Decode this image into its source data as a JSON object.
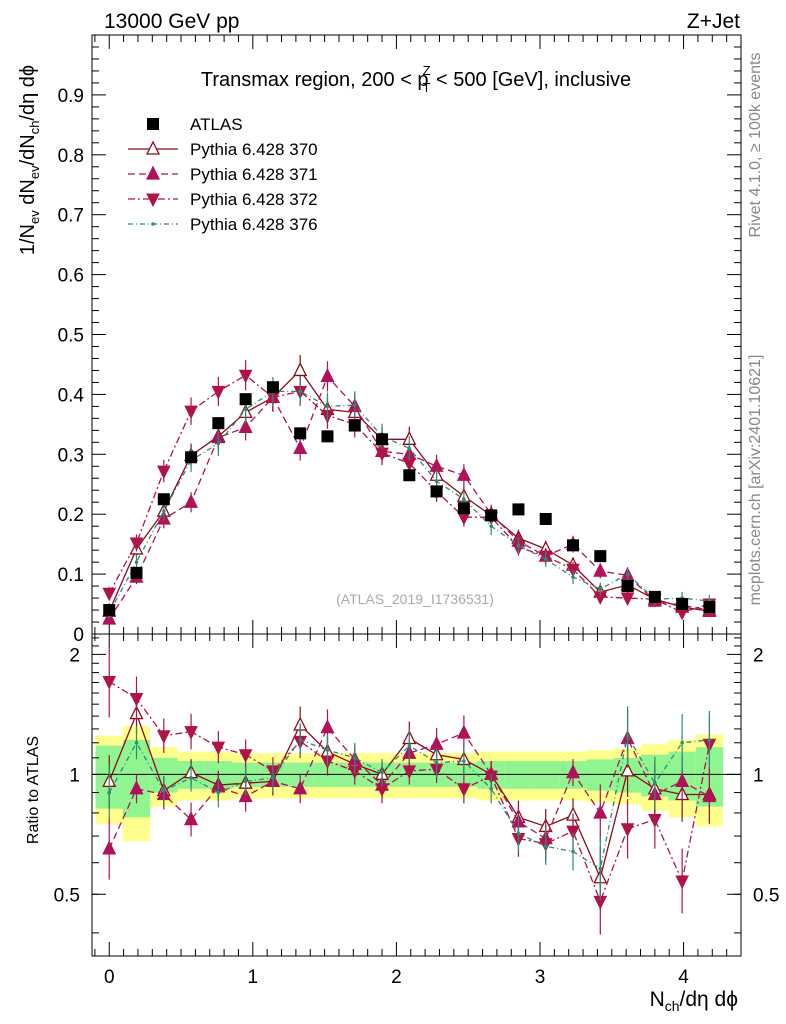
{
  "header": {
    "left": "13000 GeV pp",
    "right": "Z+Jet",
    "side_top": "Rivet 4.1.0, ≥ 100k events",
    "side_bottom": "mcplots.cern.ch [arXiv:2401.10621]"
  },
  "chart_data": {
    "type": "scatter",
    "title": "Transmax region, 200 < pT^Z < 500 [GeV], inclusive",
    "title_parts": {
      "pre": "Transmax region, 200 < p",
      "sup": "Z",
      "sub": "T",
      "post": " < 500 [GeV], inclusive"
    },
    "watermark": "(ATLAS_2019_I1736531)",
    "xlabel": "N_ch/dη dϕ",
    "ylabel": "1/N_ev dN_ev/dN_ch/dη dϕ",
    "ratio_ylabel": "Ratio to ATLAS",
    "xlim": [
      -0.12,
      4.4
    ],
    "ylim": [
      0,
      1.0
    ],
    "ratio_ylim": [
      0.35,
      2.25
    ],
    "xticks": [
      0,
      1,
      2,
      3,
      4
    ],
    "yticks": [
      0,
      0.1,
      0.2,
      0.3,
      0.4,
      0.5,
      0.6,
      0.7,
      0.8,
      0.9
    ],
    "ytick_labels": [
      "0",
      "0.1",
      "0.2",
      "0.3",
      "0.4",
      "0.5",
      "0.6",
      "0.7",
      "0.8",
      "0.9"
    ],
    "ratio_yticks": [
      0.5,
      1,
      2
    ],
    "ratio_ytick_labels": [
      "0.5",
      "1",
      "2"
    ],
    "x": [
      0.0,
      0.19,
      0.38,
      0.57,
      0.76,
      0.95,
      1.14,
      1.33,
      1.52,
      1.71,
      1.9,
      2.09,
      2.28,
      2.47,
      2.66,
      2.85,
      3.04,
      3.23,
      3.42,
      3.61,
      3.8,
      3.99,
      4.18
    ],
    "series": [
      {
        "name": "ATLAS",
        "marker": "square",
        "color": "#000000",
        "values": [
          0.04,
          0.102,
          0.225,
          0.295,
          0.352,
          0.392,
          0.412,
          0.335,
          0.33,
          0.348,
          0.325,
          0.265,
          0.238,
          0.21,
          0.198,
          0.208,
          0.192,
          0.148,
          0.13,
          0.08,
          0.062,
          0.05,
          0.045
        ]
      },
      {
        "name": "Pythia 6.428 370",
        "marker": "triangle-up-open",
        "color": "#8b0d1a",
        "dash": "",
        "values": [
          0.038,
          0.142,
          0.205,
          0.298,
          0.33,
          0.37,
          0.395,
          0.44,
          0.375,
          0.37,
          0.325,
          0.325,
          0.265,
          0.23,
          0.198,
          0.16,
          0.142,
          0.115,
          0.07,
          0.082,
          0.058,
          0.045,
          0.038
        ],
        "ratio": [
          0.96,
          1.42,
          0.91,
          1.01,
          0.94,
          0.95,
          0.96,
          1.33,
          1.14,
          1.06,
          1.0,
          1.23,
          1.12,
          1.09,
          1.0,
          0.78,
          0.74,
          0.79,
          0.55,
          1.02,
          0.92,
          0.89,
          0.89
        ]
      },
      {
        "name": "Pythia 6.428 371",
        "marker": "triangle-up",
        "color": "#b0125a",
        "dash": "7,4",
        "values": [
          0.025,
          0.095,
          0.192,
          0.22,
          0.328,
          0.345,
          0.395,
          0.31,
          0.43,
          0.38,
          0.305,
          0.3,
          0.28,
          0.265,
          0.2,
          0.155,
          0.13,
          0.15,
          0.105,
          0.098,
          0.055,
          0.048,
          0.04
        ],
        "ratio": [
          0.65,
          0.92,
          0.89,
          0.77,
          0.93,
          0.88,
          0.96,
          0.92,
          1.31,
          1.09,
          0.94,
          1.13,
          1.19,
          1.27,
          1.0,
          0.76,
          0.69,
          1.01,
          0.8,
          1.23,
          0.89,
          0.96,
          0.88
        ]
      },
      {
        "name": "Pythia 6.428 372",
        "marker": "triangle-down",
        "color": "#b0124a",
        "dash": "7,3,2,3",
        "values": [
          0.068,
          0.152,
          0.272,
          0.372,
          0.405,
          0.432,
          0.395,
          0.405,
          0.365,
          0.35,
          0.302,
          0.285,
          0.238,
          0.195,
          0.195,
          0.145,
          0.13,
          0.108,
          0.062,
          0.06,
          0.058,
          0.036,
          0.05
        ],
        "ratio": [
          1.71,
          1.55,
          1.25,
          1.28,
          1.17,
          1.12,
          1.02,
          1.21,
          1.08,
          1.02,
          0.92,
          1.02,
          1.03,
          0.92,
          0.99,
          0.69,
          0.67,
          0.72,
          0.48,
          0.73,
          0.77,
          0.54,
          1.19
        ]
      },
      {
        "name": "Pythia 6.428 376",
        "marker": "dot",
        "color": "#2e8b76",
        "dash": "5,3,1,3",
        "values": [
          0.035,
          0.12,
          0.205,
          0.29,
          0.318,
          0.375,
          0.405,
          0.405,
          0.38,
          0.382,
          0.33,
          0.31,
          0.255,
          0.225,
          0.18,
          0.148,
          0.125,
          0.095,
          0.075,
          0.1,
          0.058,
          0.06,
          0.055
        ],
        "ratio": [
          0.9,
          1.2,
          0.91,
          0.98,
          0.9,
          0.96,
          0.98,
          1.22,
          1.15,
          1.1,
          1.01,
          1.18,
          1.07,
          1.08,
          0.92,
          0.71,
          0.66,
          0.64,
          0.58,
          1.25,
          0.95,
          1.2,
          1.22
        ]
      }
    ],
    "yellow_band": [
      0.25,
      0.32,
      0.17,
      0.14,
      0.14,
      0.13,
      0.13,
      0.13,
      0.13,
      0.13,
      0.13,
      0.13,
      0.13,
      0.13,
      0.14,
      0.14,
      0.14,
      0.14,
      0.15,
      0.16,
      0.19,
      0.22,
      0.26
    ],
    "green_band": [
      0.18,
      0.22,
      0.1,
      0.08,
      0.08,
      0.07,
      0.07,
      0.07,
      0.07,
      0.07,
      0.07,
      0.07,
      0.07,
      0.07,
      0.08,
      0.08,
      0.08,
      0.08,
      0.09,
      0.1,
      0.12,
      0.14,
      0.17
    ]
  }
}
